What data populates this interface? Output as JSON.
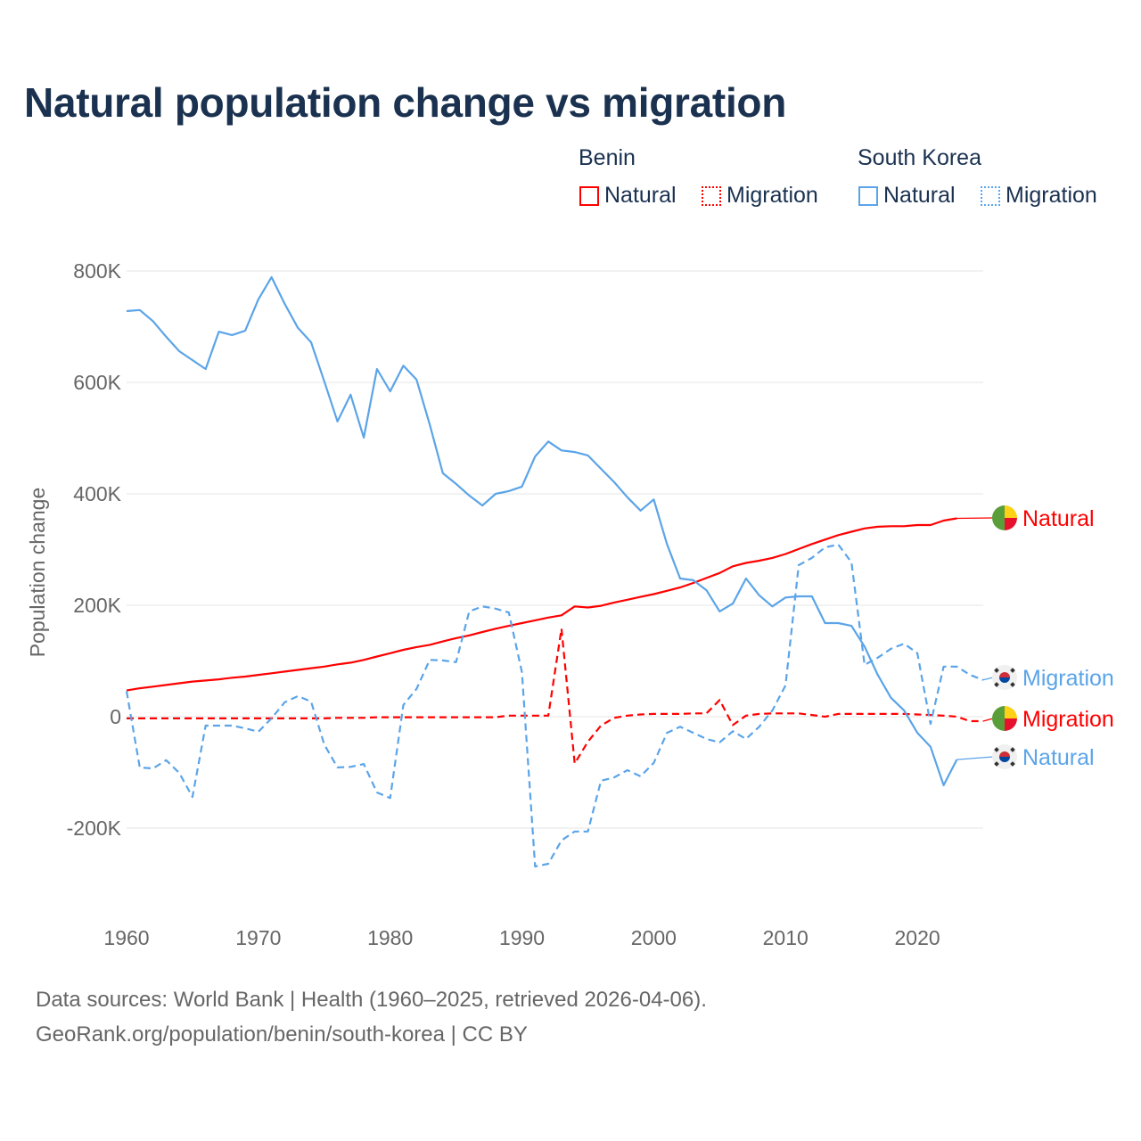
{
  "title": "Natural population change vs migration",
  "legend": {
    "groups": [
      {
        "name": "Benin",
        "items": [
          {
            "label": "Natural",
            "color": "#ff0000",
            "style": "solid"
          },
          {
            "label": "Migration",
            "color": "#ff0000",
            "style": "dotted"
          }
        ]
      },
      {
        "name": "South Korea",
        "items": [
          {
            "label": "Natural",
            "color": "#5ba4e8",
            "style": "solid"
          },
          {
            "label": "Migration",
            "color": "#5ba4e8",
            "style": "dotted"
          }
        ]
      }
    ]
  },
  "footer": {
    "line1": "Data sources: World Bank | Health (1960–2025, retrieved 2026-04-06).",
    "line2": "GeoRank.org/population/benin/south-korea | CC BY"
  },
  "chart_data": {
    "type": "line",
    "title": "Natural population change vs migration",
    "ylabel": "Population change",
    "xlabel": "",
    "xlim": [
      1960,
      2025
    ],
    "ylim": [
      -300000,
      800000
    ],
    "xticks": [
      1960,
      1970,
      1980,
      1990,
      2000,
      2010,
      2020
    ],
    "yticks": [
      {
        "v": 800000,
        "label": "800K"
      },
      {
        "v": 600000,
        "label": "600K"
      },
      {
        "v": 400000,
        "label": "400K"
      },
      {
        "v": 200000,
        "label": "200K"
      },
      {
        "v": 0,
        "label": "0"
      },
      {
        "v": -200000,
        "label": "-200K"
      }
    ],
    "grid": true,
    "series": [
      {
        "name": "Benin Natural",
        "end_label": "Natural",
        "flag": "benin",
        "color": "#ff0000",
        "dash": false,
        "start": 1960,
        "values": [
          47,
          51,
          54,
          57,
          60,
          63,
          65,
          67,
          70,
          72,
          75,
          78,
          81,
          84,
          87,
          90,
          94,
          97,
          102,
          108,
          114,
          120,
          125,
          129,
          135,
          141,
          146,
          152,
          158,
          163,
          168,
          173,
          178,
          182,
          198,
          196,
          199,
          205,
          210,
          215,
          220,
          226,
          232,
          240,
          249,
          258,
          270,
          276,
          280,
          285,
          292,
          301,
          310,
          318,
          326,
          332,
          338,
          341,
          342,
          342,
          344,
          344,
          352,
          356
        ]
      },
      {
        "name": "Benin Migration",
        "end_label": "Migration",
        "flag": "benin",
        "color": "#ff0000",
        "dash": true,
        "start": 1960,
        "values": [
          -3,
          -3,
          -3,
          -3,
          -3,
          -3,
          -3,
          -3,
          -3,
          -3,
          -3,
          -3,
          -3,
          -3,
          -3,
          -3,
          -2,
          -2,
          -2,
          -1,
          -1,
          -1,
          -1,
          -1,
          -1,
          -1,
          -1,
          -1,
          -1,
          2,
          2,
          2,
          2,
          158,
          -84,
          -45,
          -16,
          -2,
          2,
          4,
          5,
          5,
          5,
          6,
          6,
          30,
          -15,
          2,
          5,
          6,
          6,
          6,
          3,
          0,
          5,
          5,
          5,
          5,
          5,
          5,
          4,
          3,
          2,
          0,
          -8,
          -8
        ]
      },
      {
        "name": "South Korea Natural",
        "end_label": "Natural",
        "flag": "south-korea",
        "color": "#5ba4e8",
        "dash": false,
        "start": 1960,
        "values": [
          728,
          730,
          710,
          682,
          656,
          640,
          624,
          691,
          685,
          693,
          749,
          789,
          741,
          698,
          672,
          602,
          530,
          578,
          501,
          624,
          584,
          630,
          605,
          525,
          437,
          418,
          397,
          379,
          400,
          405,
          413,
          467,
          494,
          478,
          475,
          469,
          445,
          421,
          394,
          370,
          390,
          310,
          248,
          245,
          227,
          189,
          203,
          248,
          218,
          198,
          214,
          216,
          216,
          168,
          168,
          163,
          126,
          75,
          34,
          11,
          -29,
          -54,
          -123,
          -77
        ]
      },
      {
        "name": "South Korea Migration",
        "end_label": "Migration",
        "flag": "south-korea",
        "color": "#5ba4e8",
        "dash": true,
        "start": 1960,
        "values": [
          46,
          -91,
          -93,
          -78,
          -101,
          -144,
          -16,
          -16,
          -16,
          -21,
          -27,
          -3,
          26,
          37,
          27,
          -50,
          -91,
          -90,
          -85,
          -136,
          -146,
          21,
          50,
          102,
          101,
          98,
          189,
          198,
          194,
          187,
          80,
          -269,
          -264,
          -222,
          -206,
          -206,
          -115,
          -109,
          -96,
          -107,
          -83,
          -29,
          -18,
          -29,
          -40,
          -46,
          -26,
          -40,
          -18,
          11,
          56,
          272,
          285,
          304,
          309,
          277,
          93,
          106,
          122,
          131,
          114,
          -13,
          90,
          90,
          75,
          66
        ]
      }
    ],
    "value_unit": "thousands"
  }
}
